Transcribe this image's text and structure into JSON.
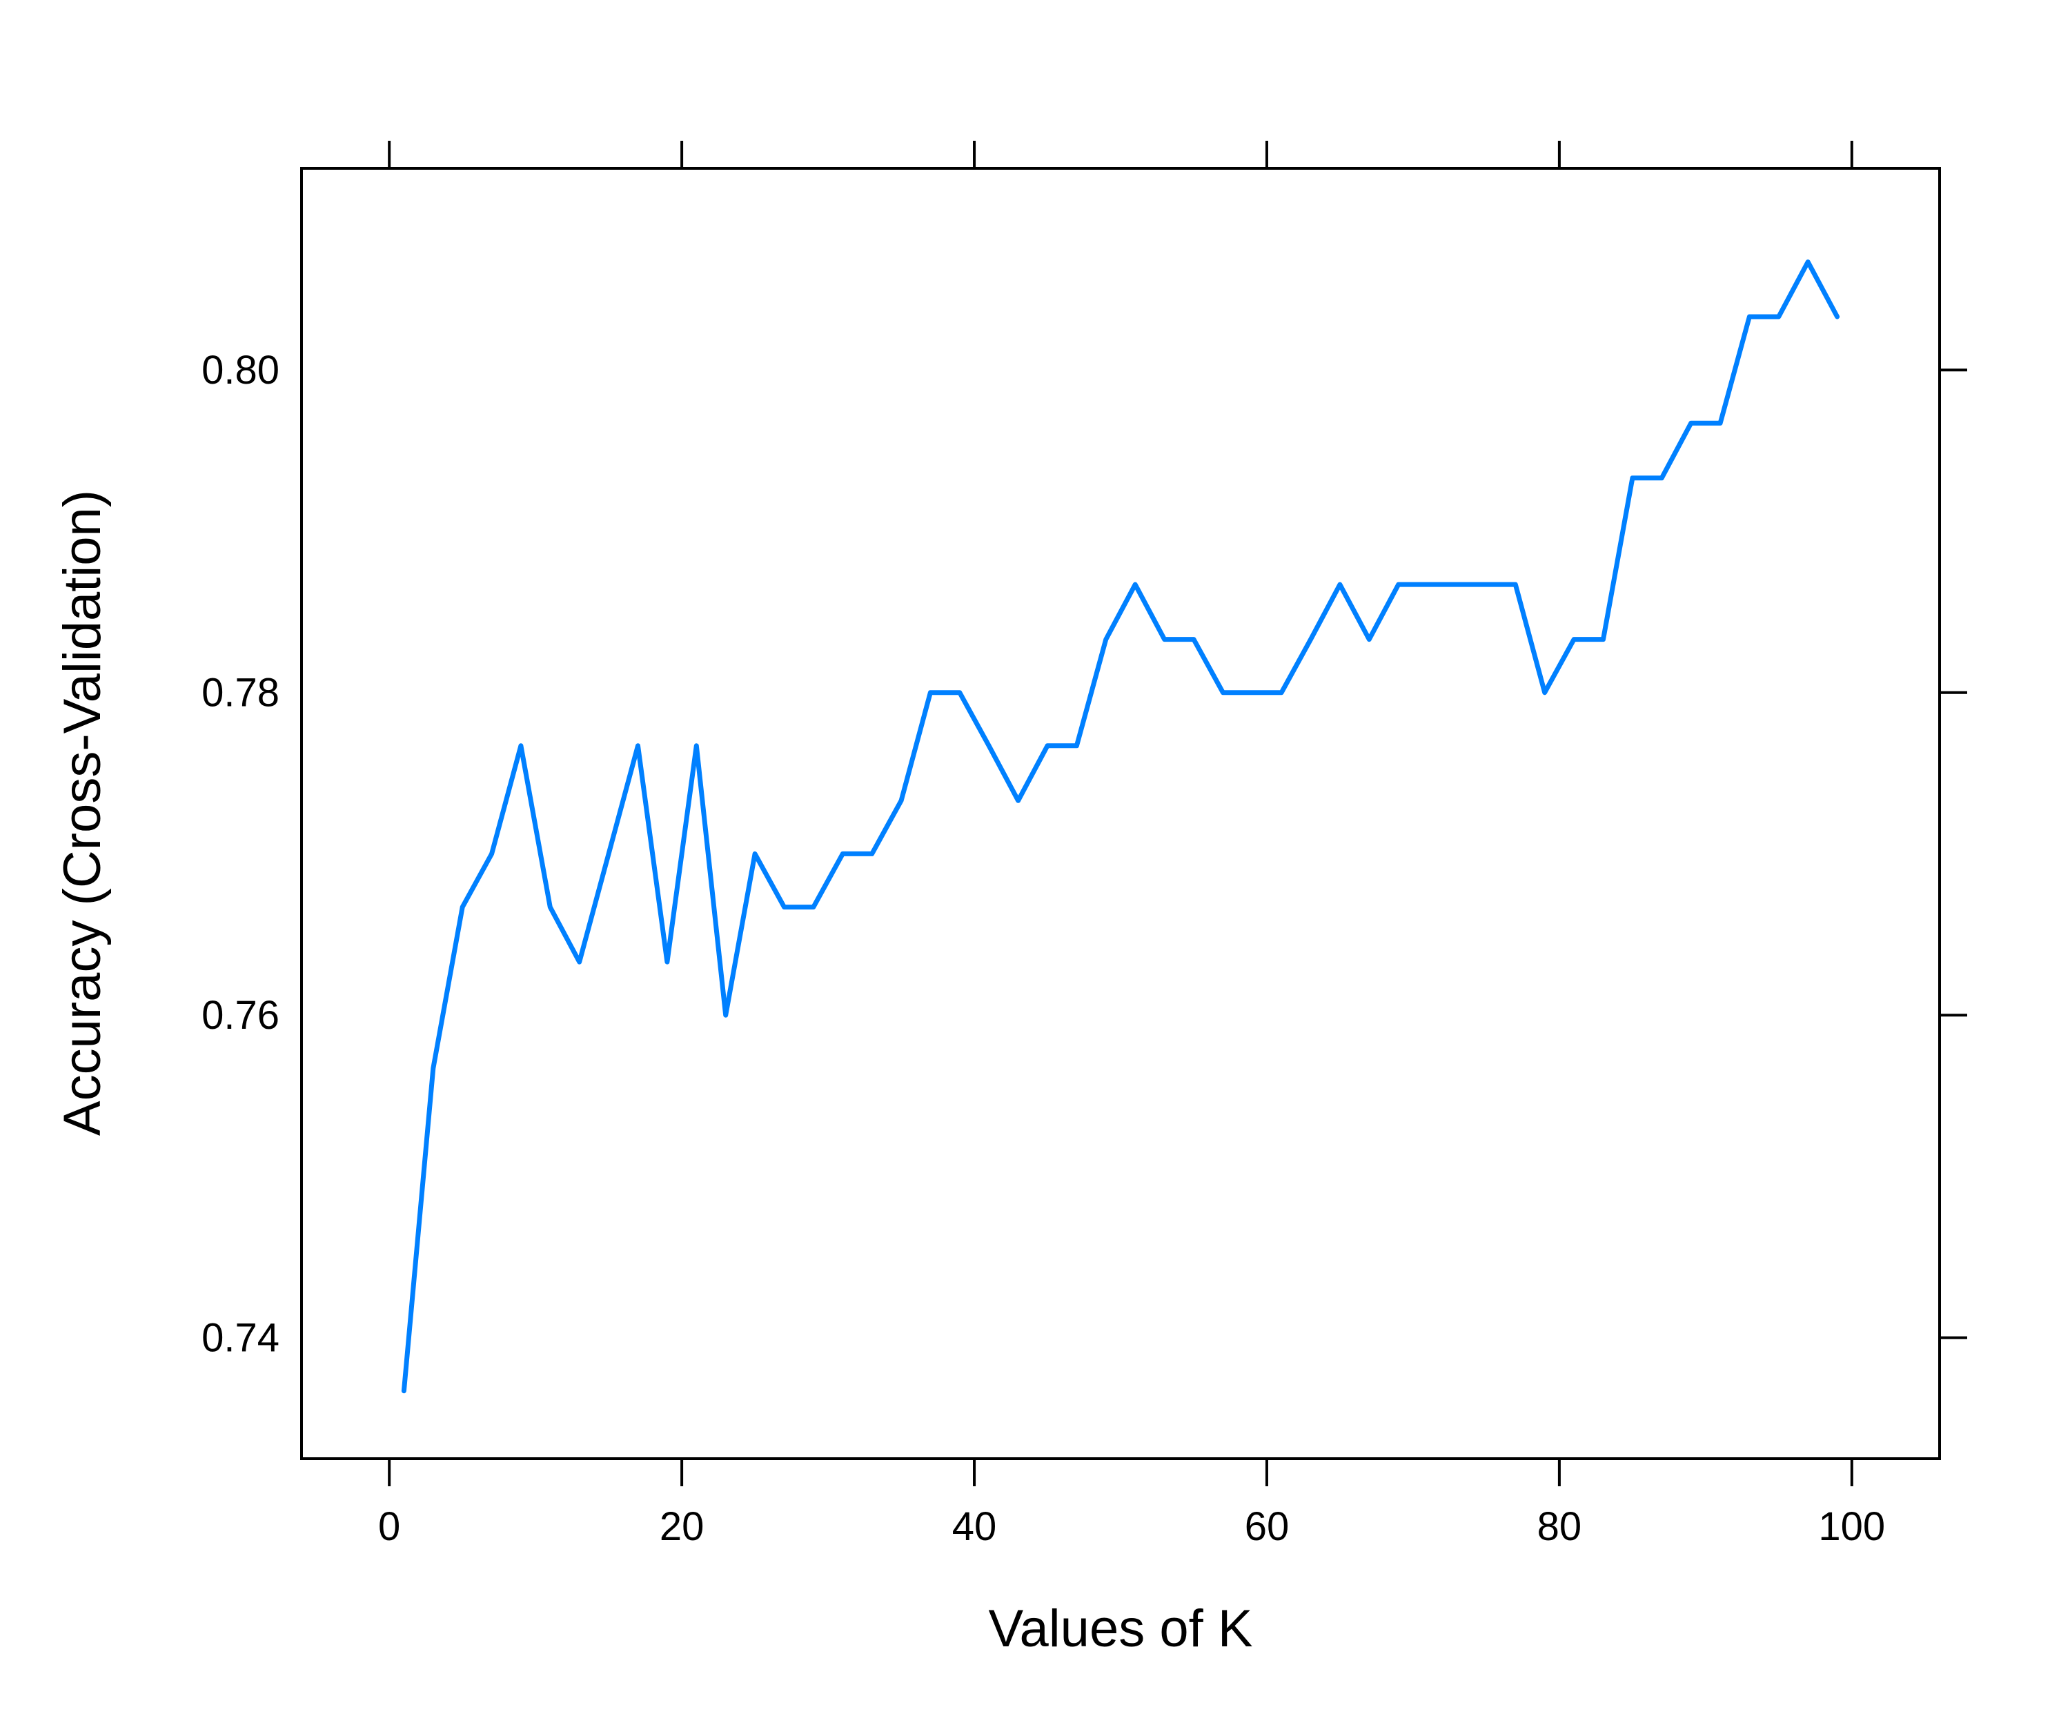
{
  "chart_data": {
    "type": "line",
    "title": "",
    "xlabel": "Values of K",
    "ylabel": "Accuracy (Cross-Validation)",
    "xlim": [
      -6,
      106
    ],
    "ylim": [
      0.7325,
      0.8125
    ],
    "xticks": [
      0,
      20,
      40,
      60,
      80,
      100
    ],
    "xtick_labels": [
      "0",
      "20",
      "40",
      "60",
      "80",
      "100"
    ],
    "yticks": [
      0.74,
      0.76,
      0.78,
      0.8
    ],
    "ytick_labels": [
      "0.74",
      "0.76",
      "0.78",
      "0.80"
    ],
    "grid": false,
    "legend": "none",
    "line_color": "#0080FF",
    "series": [
      {
        "x": [
          1,
          3,
          5,
          7,
          9,
          11,
          13,
          15,
          17,
          19,
          21,
          23,
          25,
          27,
          29,
          31,
          33,
          35,
          37,
          39,
          41,
          43,
          45,
          47,
          49,
          51,
          53,
          55,
          57,
          59,
          61,
          63,
          65,
          67,
          69,
          71,
          73,
          75,
          77,
          79,
          81,
          83,
          85,
          87,
          89,
          91,
          93,
          95,
          97,
          99
        ],
        "values": [
          0.7367,
          0.7567,
          0.7667,
          0.77,
          0.7767,
          0.7667,
          0.7633,
          0.77,
          0.7767,
          0.7633,
          0.7767,
          0.76,
          0.77,
          0.7667,
          0.7667,
          0.77,
          0.77,
          0.7733,
          0.78,
          0.78,
          0.7767,
          0.7733,
          0.7767,
          0.7767,
          0.7833,
          0.7867,
          0.7833,
          0.7833,
          0.78,
          0.78,
          0.78,
          0.7833,
          0.7867,
          0.7833,
          0.7867,
          0.7867,
          0.7867,
          0.7867,
          0.7867,
          0.78,
          0.7833,
          0.7833,
          0.7933,
          0.7933,
          0.7967,
          0.7967,
          0.8033,
          0.8033,
          0.8067,
          0.8033
        ]
      }
    ]
  }
}
